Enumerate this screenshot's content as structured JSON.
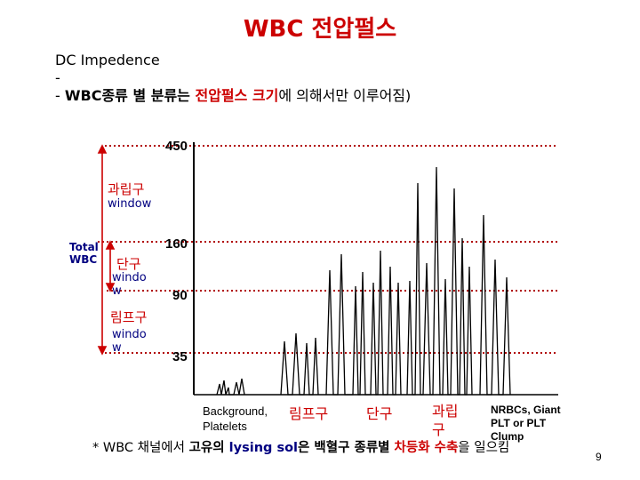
{
  "title": "WBC 전압펄스",
  "bullets": {
    "line1": "DC Impedence",
    "line2": "-",
    "line3_dash": "- ",
    "line3_a": "WBC종류 별 분류는 ",
    "line3_b": "전압펄스 크기",
    "line3_c": "에 의해서만 이루어짐)"
  },
  "axis_ticks": [
    "450",
    "160",
    "90",
    "35"
  ],
  "windows": {
    "granulocyte": {
      "name": "과립구",
      "sub": "window"
    },
    "monocyte": {
      "name": "단구",
      "sub1": "windo",
      "sub2": "w"
    },
    "lymphocyte": {
      "name": "림프구",
      "sub1": "windo",
      "sub2": "w"
    },
    "total": {
      "line1": "Total",
      "line2": "WBC"
    }
  },
  "bottom_labels": {
    "background1": "Background,",
    "background2": "Platelets",
    "lymph": "림프구",
    "mono": "단구",
    "gran1": "과립",
    "gran2": "구",
    "nrbc1": "NRBCs, Giant",
    "nrbc2": "PLT or PLT",
    "nrbc3": "Clump"
  },
  "footnote": {
    "a": "* WBC 채널에서 ",
    "b": "고유의 ",
    "c": "lysing sol",
    "d": "은 ",
    "e": "백혈구 종류별 ",
    "f": "차등화 수축",
    "g": "을 일으킴"
  },
  "page_number": "9",
  "colors": {
    "accent_red": "#cc0000",
    "dark_blue": "#000080",
    "dotted_line": "#b00000"
  }
}
